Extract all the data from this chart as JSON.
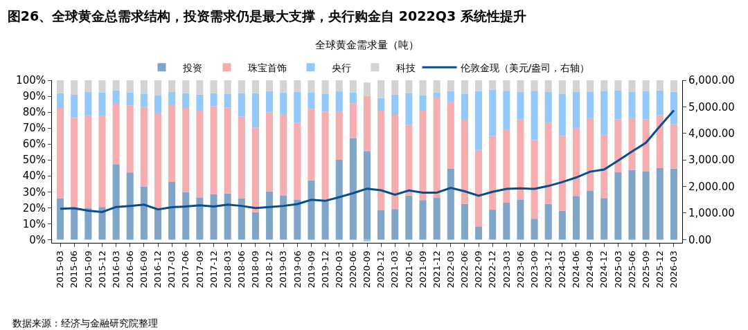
{
  "chart_data": {
    "type": "bar",
    "stacked": true,
    "title": "图26、全球黄金总需求结构，投资需求仍是最大支撑，央行购金自 2022Q3 系统性提升",
    "subtitle": "全球黄金需求量（吨）",
    "annotations": [
      "数据来源：经济与金融研究院整理"
    ],
    "categories": [
      "2015-03",
      "2015-06",
      "2015-09",
      "2015-12",
      "2016-03",
      "2016-06",
      "2016-09",
      "2016-12",
      "2017-03",
      "2017-06",
      "2017-09",
      "2017-12",
      "2018-03",
      "2018-06",
      "2018-09",
      "2018-12",
      "2019-03",
      "2019-06",
      "2019-09",
      "2019-12",
      "2020-03",
      "2020-06",
      "2020-09",
      "2020-12",
      "2021-03",
      "2021-06",
      "2021-09",
      "2021-12",
      "2022-03",
      "2022-06",
      "2022-09",
      "2022-12",
      "2023-03",
      "2023-06",
      "2023-09",
      "2023-12",
      "2024-03",
      "2024-06",
      "2024-09",
      "2024-12",
      "2025-03",
      "2025-06",
      "2025-09",
      "2025-12",
      "2026-03"
    ],
    "series": [
      {
        "name": "投资",
        "color": "#7fa6c9",
        "values": [
          26,
          20,
          20,
          20.5,
          47.4,
          42.2,
          33.3,
          19,
          36.2,
          29.8,
          26.5,
          28.5,
          29,
          26,
          17.2,
          30.3,
          27.8,
          25.2,
          37.3,
          24.5,
          50.1,
          63.8,
          55.6,
          18.4,
          19.2,
          27.6,
          24.8,
          26.2,
          44.7,
          22.4,
          8.3,
          18.8,
          23.2,
          25.2,
          13.1,
          22.5,
          18.1,
          27.4,
          30.6,
          26.1,
          42.3,
          43.7,
          42.7,
          44.9,
          44.6
        ]
      },
      {
        "name": "珠宝首饰",
        "color": "#f4aeb0",
        "values": [
          56.6,
          56.5,
          58,
          57,
          37.8,
          42.1,
          49.9,
          60.2,
          48.6,
          52.8,
          54.8,
          55.3,
          53.9,
          51.2,
          53.2,
          49.5,
          51,
          48,
          44.6,
          55.8,
          30.4,
          21.7,
          34.4,
          62.5,
          59.1,
          44.5,
          56.1,
          63,
          41.9,
          52.4,
          48,
          46.2,
          45.6,
          49.9,
          49.3,
          51.1,
          47.1,
          42.7,
          45.6,
          39.7,
          33.2,
          32.5,
          32.8,
          33.2,
          27.9
        ]
      },
      {
        "name": "央行",
        "color": "#93c8fb",
        "values": [
          9.3,
          14.4,
          14.6,
          14.8,
          8.5,
          8,
          8.4,
          11.4,
          7.8,
          9.3,
          9.7,
          8.1,
          8.4,
          14.7,
          21.5,
          13.4,
          13.5,
          19.5,
          10.3,
          11.3,
          12.5,
          6.8,
          -1.1,
          8,
          12.7,
          19.9,
          9.8,
          3.1,
          6.6,
          16.8,
          37,
          29,
          24.6,
          17.5,
          31,
          19,
          26.4,
          22.5,
          16.7,
          27.6,
          18.1,
          16.4,
          17.8,
          15.5,
          20.2
        ]
      },
      {
        "name": "科技",
        "color": "#d3d3d3",
        "values": [
          8.1,
          9.1,
          7.4,
          7.7,
          6.3,
          7.7,
          8.4,
          9.4,
          7.4,
          8.1,
          9,
          8.1,
          8.7,
          8.1,
          8.1,
          6.8,
          7.7,
          7.3,
          7.8,
          8.4,
          7,
          7.7,
          8.6,
          11.1,
          9,
          8,
          9.3,
          7.7,
          6.8,
          8.4,
          6.7,
          6,
          6.6,
          7.4,
          6.6,
          7.4,
          8.4,
          7.4,
          7.1,
          6.6,
          6.4,
          7.4,
          6.7,
          6.4,
          7.3
        ]
      },
      {
        "name": "伦敦金现（美元/盎司，右轴）",
        "type": "line",
        "axis": "y2",
        "color": "#0a4d8c",
        "values": [
          1160,
          1180,
          1090,
          1040,
          1230,
          1270,
          1320,
          1140,
          1220,
          1250,
          1290,
          1250,
          1320,
          1270,
          1190,
          1230,
          1270,
          1340,
          1500,
          1460,
          1600,
          1750,
          1920,
          1860,
          1690,
          1850,
          1770,
          1770,
          1950,
          1820,
          1650,
          1800,
          1910,
          1930,
          1910,
          2020,
          2170,
          2340,
          2560,
          2640,
          2970,
          3320,
          3650,
          4270,
          4870
        ]
      }
    ],
    "ylim": [
      -2,
      100
    ],
    "yticks": [
      {
        "value": 0,
        "label": "0%"
      },
      {
        "value": 10,
        "label": "10%"
      },
      {
        "value": 20,
        "label": "20%"
      },
      {
        "value": 30,
        "label": "30%"
      },
      {
        "value": 40,
        "label": "40%"
      },
      {
        "value": 50,
        "label": "50%"
      },
      {
        "value": 60,
        "label": "60%"
      },
      {
        "value": 70,
        "label": "70%"
      },
      {
        "value": 80,
        "label": "80%"
      },
      {
        "value": 90,
        "label": "90%"
      },
      {
        "value": 100,
        "label": "100%"
      }
    ],
    "y2lim": [
      -120,
      6000
    ],
    "y2ticks": [
      {
        "value": 0,
        "label": "0.00"
      },
      {
        "value": 1000,
        "label": "1,000.00"
      },
      {
        "value": 2000,
        "label": "2,000.00"
      },
      {
        "value": 3000,
        "label": "3,000.00"
      },
      {
        "value": 4000,
        "label": "4,000.00"
      },
      {
        "value": 5000,
        "label": "5,000.00"
      },
      {
        "value": 6000,
        "label": "6,000.00"
      }
    ],
    "legend": "top",
    "grid": false,
    "line_style": "solid"
  }
}
